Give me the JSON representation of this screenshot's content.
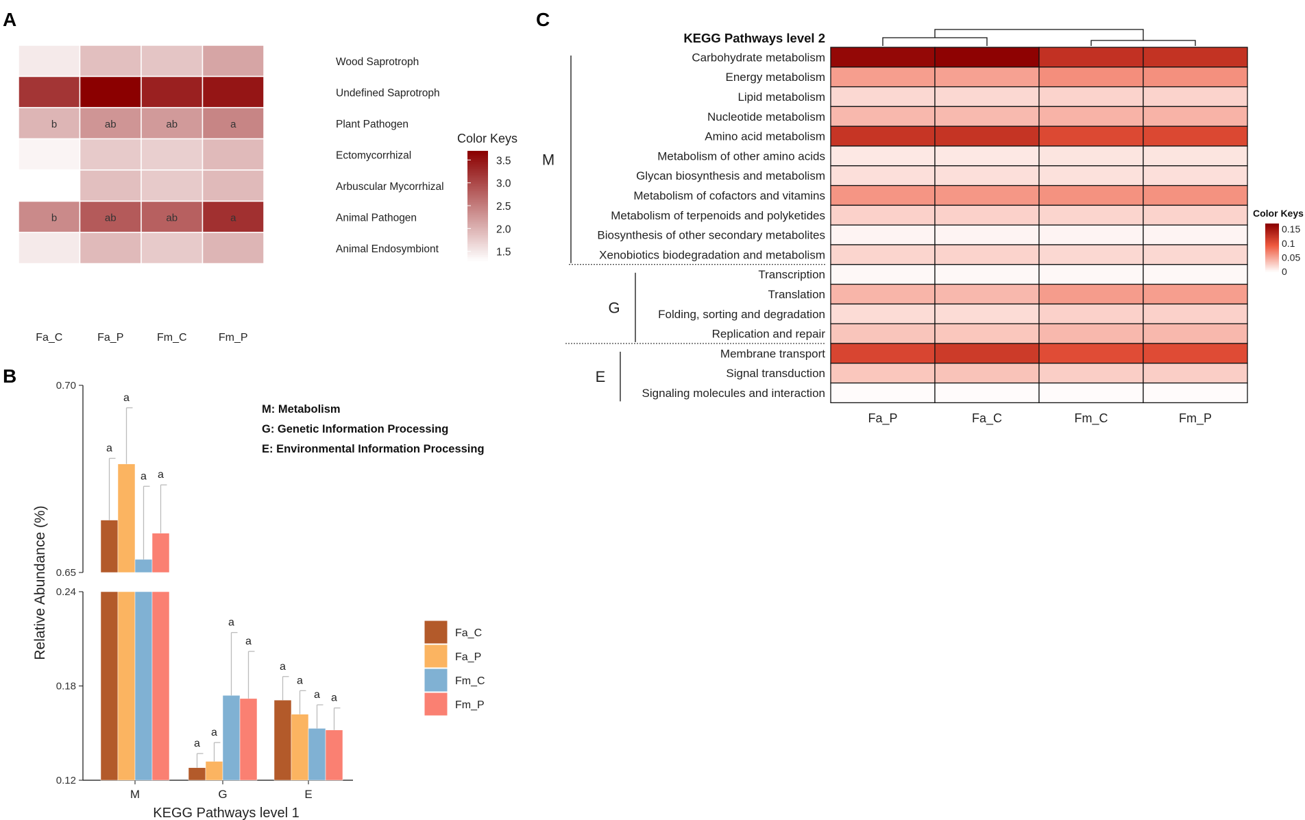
{
  "chart_data": [
    {
      "panel": "A",
      "type": "heatmap",
      "columns": [
        "Fa_C",
        "Fa_P",
        "Fm_C",
        "Fm_P"
      ],
      "rows": [
        "Wood Saprotroph",
        "Undefined Saprotroph",
        "Plant Pathogen",
        "Ectomycorrhizal",
        "Arbuscular Mycorrhizal",
        "Animal Pathogen",
        "Animal Endosymbiont"
      ],
      "values": [
        [
          1.5,
          1.9,
          1.85,
          2.15
        ],
        [
          3.2,
          3.7,
          3.4,
          3.5
        ],
        [
          2.0,
          2.3,
          2.25,
          2.45
        ],
        [
          1.4,
          1.8,
          1.75,
          1.95
        ],
        [
          1.25,
          1.9,
          1.8,
          1.95
        ],
        [
          2.4,
          2.85,
          2.8,
          3.25
        ],
        [
          1.5,
          1.95,
          1.8,
          2.0
        ]
      ],
      "annotations": [
        {
          "row": 2,
          "labels": [
            "b",
            "ab",
            "ab",
            "a"
          ]
        },
        {
          "row": 5,
          "labels": [
            "b",
            "ab",
            "ab",
            "a"
          ]
        }
      ],
      "legend_title": "Color Keys",
      "legend_ticks": [
        "3.5",
        "3.0",
        "2.5",
        "2.0",
        "1.5"
      ],
      "legend_tick_values": [
        3.5,
        3.0,
        2.5,
        2.0,
        1.5
      ],
      "range": [
        1.3,
        3.7
      ],
      "colors": {
        "low": "#ffffff",
        "high": "#8b0000"
      }
    },
    {
      "panel": "B",
      "type": "bar",
      "categories": [
        "M",
        "G",
        "E"
      ],
      "series": [
        {
          "name": "Fa_C",
          "color": "#b35a2a",
          "values": [
            0.664,
            0.128,
            0.171
          ],
          "errors": [
            0.0165,
            0.009,
            0.015
          ],
          "letters": [
            "a",
            "a",
            "a"
          ]
        },
        {
          "name": "Fa_P",
          "color": "#fbb461",
          "values": [
            0.679,
            0.132,
            0.162
          ],
          "errors": [
            0.015,
            0.012,
            0.015
          ],
          "letters": [
            "a",
            "a",
            "a"
          ]
        },
        {
          "name": "Fm_C",
          "color": "#80b1d3",
          "values": [
            0.6535,
            0.174,
            0.153
          ],
          "errors": [
            0.01953,
            0.04,
            0.015
          ],
          "letters": [
            "a",
            "a",
            "a"
          ]
        },
        {
          "name": "Fm_P",
          "color": "#fa8072",
          "values": [
            0.6605,
            0.172,
            0.152
          ],
          "errors": [
            0.0129,
            0.03,
            0.014
          ],
          "letters": [
            "a",
            "a",
            "a"
          ]
        }
      ],
      "axis_break": {
        "lower": [
          0.12,
          0.24
        ],
        "upper": [
          0.65,
          0.7
        ]
      },
      "yticks_lower": [
        "0.12",
        "0.18",
        "0.24"
      ],
      "yticks_upper": [
        "0.65",
        "0.70"
      ],
      "xlabel": "KEGG Pathways level 1",
      "ylabel": "Relative Abundance (%)",
      "key": [
        "M: Metabolism",
        "G: Genetic Information Processing",
        "E:  Environmental Information Processing"
      ]
    },
    {
      "panel": "C",
      "type": "heatmap",
      "title": "KEGG Pathways level 2",
      "columns": [
        "Fa_P",
        "Fa_C",
        "Fm_C",
        "Fm_P"
      ],
      "rows": [
        "Carbohydrate metabolism",
        "Energy metabolism",
        "Lipid metabolism",
        "Nucleotide metabolism",
        "Amino acid metabolism",
        "Metabolism of other amino acids",
        "Glycan biosynthesis and metabolism",
        "Metabolism of cofactors and vitamins",
        "Metabolism of terpenoids and polyketides",
        "Biosynthesis of other secondary metabolites",
        "Xenobiotics biodegradation and metabolism",
        "Transcription",
        "Translation",
        "Folding, sorting and degradation",
        "Replication and repair",
        "Membrane transport",
        "Signal transduction",
        "Signaling molecules and interaction"
      ],
      "values": [
        [
          0.163,
          0.168,
          0.128,
          0.127
        ],
        [
          0.055,
          0.053,
          0.064,
          0.063
        ],
        [
          0.022,
          0.022,
          0.025,
          0.025
        ],
        [
          0.04,
          0.039,
          0.043,
          0.043
        ],
        [
          0.125,
          0.126,
          0.108,
          0.109
        ],
        [
          0.013,
          0.013,
          0.015,
          0.015
        ],
        [
          0.018,
          0.018,
          0.017,
          0.018
        ],
        [
          0.06,
          0.059,
          0.062,
          0.062
        ],
        [
          0.026,
          0.026,
          0.024,
          0.025
        ],
        [
          0.006,
          0.006,
          0.006,
          0.006
        ],
        [
          0.024,
          0.025,
          0.022,
          0.022
        ],
        [
          0.004,
          0.004,
          0.004,
          0.004
        ],
        [
          0.042,
          0.04,
          0.056,
          0.055
        ],
        [
          0.02,
          0.02,
          0.026,
          0.026
        ],
        [
          0.033,
          0.032,
          0.04,
          0.04
        ],
        [
          0.111,
          0.12,
          0.105,
          0.106
        ],
        [
          0.032,
          0.034,
          0.028,
          0.028
        ],
        [
          0.002,
          0.002,
          0.002,
          0.002
        ]
      ],
      "groups": [
        {
          "label": "M",
          "from": 0,
          "to": 10
        },
        {
          "label": "G",
          "from": 11,
          "to": 14
        },
        {
          "label": "E",
          "from": 15,
          "to": 17
        }
      ],
      "legend_title": "Color Keys",
      "legend_ticks": [
        "0.15",
        "0.1",
        "0.05",
        "0"
      ],
      "legend_tick_values": [
        0.15,
        0.1,
        0.05,
        0
      ],
      "range": [
        0,
        0.17
      ],
      "colors": {
        "low": "#ffffff",
        "mid": "#ef5a3f",
        "high": "#8b0000"
      }
    }
  ],
  "panel_labels": [
    "A",
    "B",
    "C"
  ]
}
